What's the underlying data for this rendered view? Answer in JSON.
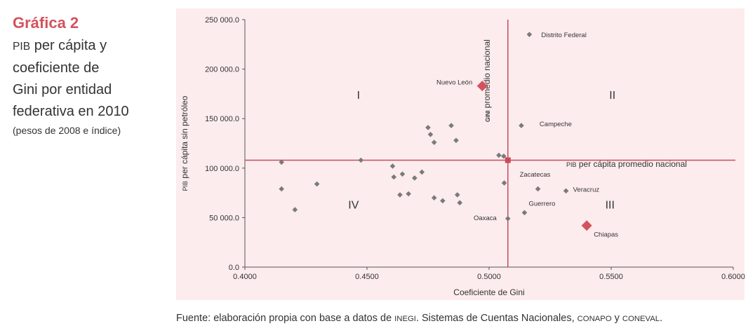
{
  "header": {
    "chart_number": "Gráfica 2",
    "subtitle_lines": [
      {
        "sc": "PIB",
        "rest": " per cápita y"
      },
      {
        "sc": "",
        "rest": "coeficiente de"
      },
      {
        "sc": "",
        "rest": "Gini por entidad"
      },
      {
        "sc": "",
        "rest": "federativa en 2010"
      }
    ],
    "unit": "(pesos de 2008 e índice)"
  },
  "footer": {
    "source_prefix": "Fuente: elaboración propia con base a datos de ",
    "source_sc1": "INEGI",
    "source_mid": ". Sistemas de Cuentas Nacionales, ",
    "source_sc2": "CONAPO",
    "source_mid2": " y ",
    "source_sc3": "CONEVAL",
    "source_end": "."
  },
  "colors": {
    "point": "#7a7a7a",
    "highlight": "#d4525e",
    "reference_line": "#c94b5a",
    "axis": "#555555",
    "background": "#fcecee"
  },
  "chart_data": {
    "type": "scatter",
    "xlabel": "Coeficiente de Gini",
    "ylabel": "PIB per cápita sin petróleo",
    "xlim": [
      0.4,
      0.6
    ],
    "ylim": [
      0,
      250000
    ],
    "x_ticks": [
      "0.4000",
      "0.4500",
      "0.5000",
      "0.5500",
      "0.6000"
    ],
    "y_ticks": [
      "0.0",
      "50 000.0",
      "100 000.0",
      "150 000.0",
      "200 000.0",
      "250 000.0"
    ],
    "grid": false,
    "reference_lines": {
      "vertical": {
        "x": 0.5077,
        "label": "GINI promedio nacional"
      },
      "horizontal": {
        "y": 108000,
        "label": "PIB per cápita promedio nacional"
      }
    },
    "quadrant_labels": [
      {
        "label": "I",
        "x": 0.4465,
        "y": 170000
      },
      {
        "label": "II",
        "x": 0.5505,
        "y": 170000
      },
      {
        "label": "III",
        "x": 0.5495,
        "y": 59000
      },
      {
        "label": "IV",
        "x": 0.4445,
        "y": 59000
      }
    ],
    "points": [
      {
        "x": 0.5165,
        "y": 235000,
        "label": "Distrito Federal",
        "highlight": false
      },
      {
        "x": 0.4972,
        "y": 183000,
        "label": "Nuevo León",
        "highlight": true
      },
      {
        "x": 0.5132,
        "y": 143000,
        "label": "Campeche",
        "highlight": false
      },
      {
        "x": 0.5062,
        "y": 85000,
        "label": "Zacatecas",
        "highlight": false
      },
      {
        "x": 0.52,
        "y": 79000,
        "label": "",
        "highlight": false
      },
      {
        "x": 0.5315,
        "y": 77000,
        "label": "Veracruz",
        "highlight": false
      },
      {
        "x": 0.5145,
        "y": 55000,
        "label": "Guerrero",
        "highlight": false
      },
      {
        "x": 0.5077,
        "y": 49000,
        "label": "Oaxaca",
        "highlight": false
      },
      {
        "x": 0.54,
        "y": 42000,
        "label": "Chiapas",
        "highlight": true
      },
      {
        "x": 0.415,
        "y": 106000,
        "label": "",
        "highlight": false
      },
      {
        "x": 0.415,
        "y": 79000,
        "label": "",
        "highlight": false
      },
      {
        "x": 0.4205,
        "y": 58000,
        "label": "",
        "highlight": false
      },
      {
        "x": 0.4295,
        "y": 84000,
        "label": "",
        "highlight": false
      },
      {
        "x": 0.4475,
        "y": 108000,
        "label": "",
        "highlight": false
      },
      {
        "x": 0.4605,
        "y": 102000,
        "label": "",
        "highlight": false
      },
      {
        "x": 0.461,
        "y": 91000,
        "label": "",
        "highlight": false
      },
      {
        "x": 0.4645,
        "y": 94000,
        "label": "",
        "highlight": false
      },
      {
        "x": 0.4695,
        "y": 90000,
        "label": "",
        "highlight": false
      },
      {
        "x": 0.4725,
        "y": 96000,
        "label": "",
        "highlight": false
      },
      {
        "x": 0.4635,
        "y": 73000,
        "label": "",
        "highlight": false
      },
      {
        "x": 0.467,
        "y": 74000,
        "label": "",
        "highlight": false
      },
      {
        "x": 0.475,
        "y": 141000,
        "label": "",
        "highlight": false
      },
      {
        "x": 0.476,
        "y": 134000,
        "label": "",
        "highlight": false
      },
      {
        "x": 0.4775,
        "y": 126000,
        "label": "",
        "highlight": false
      },
      {
        "x": 0.4845,
        "y": 143000,
        "label": "",
        "highlight": false
      },
      {
        "x": 0.4865,
        "y": 128000,
        "label": "",
        "highlight": false
      },
      {
        "x": 0.4775,
        "y": 70000,
        "label": "",
        "highlight": false
      },
      {
        "x": 0.481,
        "y": 67000,
        "label": "",
        "highlight": false
      },
      {
        "x": 0.487,
        "y": 73000,
        "label": "",
        "highlight": false
      },
      {
        "x": 0.488,
        "y": 65000,
        "label": "",
        "highlight": false
      },
      {
        "x": 0.504,
        "y": 113000,
        "label": "",
        "highlight": false
      },
      {
        "x": 0.506,
        "y": 112000,
        "label": "",
        "highlight": false
      }
    ]
  }
}
